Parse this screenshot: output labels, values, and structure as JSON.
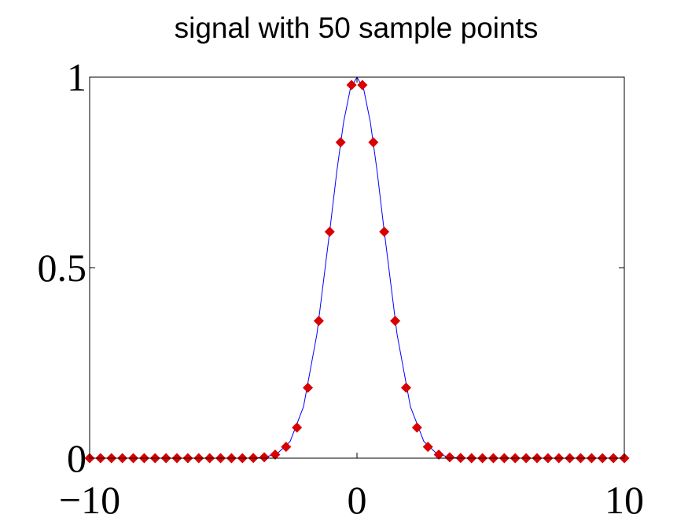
{
  "chart_data": {
    "type": "line",
    "title": "signal with 50 sample points",
    "xlabel": "",
    "ylabel": "",
    "xlim": [
      -10,
      10
    ],
    "ylim": [
      0,
      1
    ],
    "grid": false,
    "xticks": [
      -10,
      0,
      10
    ],
    "xtick_labels": [
      "−10",
      "0",
      "10"
    ],
    "yticks": [
      0,
      0.5,
      1
    ],
    "ytick_labels": [
      "0",
      "0.5",
      "1"
    ],
    "series": [
      {
        "kind": "line",
        "color": "#0000ff",
        "x": [
          -10,
          -8,
          -6,
          -5,
          -4,
          -3.5,
          -3,
          -2.5,
          -2,
          -1.5,
          -1,
          -0.75,
          -0.5,
          -0.25,
          0,
          0.25,
          0.5,
          0.75,
          1,
          1.5,
          2,
          2.5,
          3,
          3.5,
          4,
          5,
          6,
          8,
          10
        ],
        "values": [
          0,
          0,
          0,
          0.0001,
          0.0003,
          0.002,
          0.011,
          0.044,
          0.135,
          0.325,
          0.607,
          0.755,
          0.882,
          0.969,
          1,
          0.969,
          0.882,
          0.755,
          0.607,
          0.325,
          0.135,
          0.044,
          0.011,
          0.002,
          0.0003,
          0.0001,
          0,
          0,
          0
        ]
      },
      {
        "kind": "scatter",
        "marker": "diamond",
        "color": "#d90000",
        "x": [
          -10,
          -9.592,
          -9.184,
          -8.776,
          -8.367,
          -7.959,
          -7.551,
          -7.143,
          -6.735,
          -6.327,
          -5.918,
          -5.51,
          -5.102,
          -4.694,
          -4.286,
          -3.878,
          -3.469,
          -3.061,
          -2.653,
          -2.245,
          -1.837,
          -1.429,
          -1.02,
          -0.612,
          -0.204,
          0.204,
          0.612,
          1.02,
          1.429,
          1.837,
          2.245,
          2.653,
          3.061,
          3.469,
          3.878,
          4.286,
          4.694,
          5.102,
          5.51,
          5.918,
          6.327,
          6.735,
          7.143,
          7.551,
          7.959,
          8.367,
          8.776,
          9.184,
          9.592,
          10
        ],
        "values": [
          0,
          0,
          0,
          0,
          0,
          0,
          0,
          0,
          0,
          0,
          0,
          0,
          0,
          0,
          0,
          0.0005,
          0.0024,
          0.0093,
          0.0296,
          0.0804,
          0.1848,
          0.3603,
          0.5943,
          0.8291,
          0.9794,
          0.9794,
          0.8291,
          0.5943,
          0.3603,
          0.1848,
          0.0804,
          0.0296,
          0.0093,
          0.0024,
          0.0005,
          0,
          0,
          0,
          0,
          0,
          0,
          0,
          0,
          0,
          0,
          0,
          0,
          0,
          0,
          0
        ]
      }
    ]
  }
}
